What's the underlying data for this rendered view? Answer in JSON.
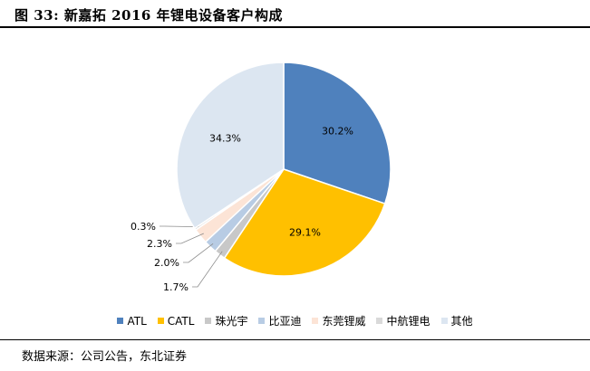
{
  "figure": {
    "title": "图 33: 新嘉拓 2016 年锂电设备客户构成",
    "source": "数据来源：公司公告，东北证券"
  },
  "chart_data": {
    "type": "pie",
    "title": "图 33: 新嘉拓 2016 年锂电设备客户构成",
    "unit": "%",
    "legend_position": "bottom",
    "start_angle": "12 o'clock, clockwise",
    "slices": [
      {
        "name": "ATL",
        "value": 30.2,
        "label": "30.2%",
        "color": "#4F81BD"
      },
      {
        "name": "CATL",
        "value": 29.1,
        "label": "29.1%",
        "color": "#FFC000"
      },
      {
        "name": "珠光宇",
        "value": 1.7,
        "label": "1.7%",
        "color": "#C8C8C8"
      },
      {
        "name": "比亚迪",
        "value": 2.0,
        "label": "2.0%",
        "color": "#B8CCE4"
      },
      {
        "name": "东莞锂威",
        "value": 2.3,
        "label": "2.3%",
        "color": "#FCE4D6"
      },
      {
        "name": "中航锂电",
        "value": 0.3,
        "label": "0.3%",
        "color": "#D9D9D9"
      },
      {
        "name": "其他",
        "value": 34.3,
        "label": "34.3%",
        "color": "#DCE6F1"
      }
    ]
  }
}
